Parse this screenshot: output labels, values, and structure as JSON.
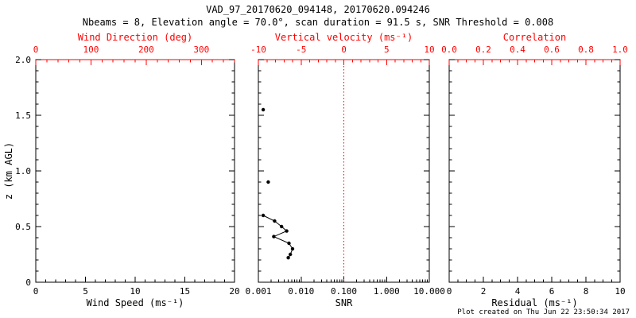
{
  "header": {
    "title": "VAD_97_20170620_094148, 20170620.094246",
    "subtitle": "Nbeams = 8, Elevation angle = 70.0°, scan duration = 91.5 s, SNR Threshold = 0.008"
  },
  "footer": {
    "created": "Plot created on Thu Jun 22 23:50:34 2017"
  },
  "colors": {
    "axis": "#000000",
    "secondary": "#ff0000",
    "data": "#000000",
    "background": "#ffffff"
  },
  "y_axis": {
    "label": "z (km AGL)",
    "min": 0,
    "max": 2,
    "tick_values": [
      0,
      0.5,
      1,
      1.5,
      2
    ],
    "tick_labels": [
      "0",
      "0.5",
      "1.0",
      "1.5",
      "2.0"
    ],
    "minor_step": 0.1
  },
  "chart_data": [
    {
      "id": "wind-speed",
      "type": "scatter",
      "xlabel": "Wind Speed (ms⁻¹)",
      "xscale": "linear",
      "xmin": 0,
      "xmax": 20,
      "tick_values": [
        0,
        5,
        10,
        15,
        20
      ],
      "tick_labels": [
        "0",
        "5",
        "10",
        "15",
        "20"
      ],
      "minor_step": 1,
      "top_axis": {
        "label": "Wind Direction (deg)",
        "min": 0,
        "max": 360,
        "tick_values": [
          0,
          100,
          200,
          300
        ],
        "tick_labels": [
          "0",
          "100",
          "200",
          "300"
        ],
        "minor_step": 20
      },
      "series": []
    },
    {
      "id": "snr",
      "type": "line-scatter",
      "xlabel": "SNR",
      "xscale": "log",
      "xmin": 0.001,
      "xmax": 10,
      "tick_values": [
        0.001,
        0.01,
        0.1,
        1,
        10
      ],
      "tick_labels": [
        "0.001",
        "0.010",
        "0.100",
        "1.000",
        "10.000"
      ],
      "top_axis": {
        "label": "Vertical velocity (ms⁻¹)",
        "min": -10,
        "max": 10,
        "tick_values": [
          -10,
          -5,
          0,
          5,
          10
        ],
        "tick_labels": [
          "-10",
          "-5",
          "0",
          "5",
          "10"
        ],
        "minor_step": 1
      },
      "ref_line": {
        "top_axis_value": 0,
        "color": "#ff0000",
        "style": "dotted"
      },
      "series": [
        {
          "name": "snr-isolated-points",
          "connect": false,
          "points": [
            {
              "x": 0.0013,
              "z": 1.55
            },
            {
              "x": 0.0017,
              "z": 0.9
            }
          ]
        },
        {
          "name": "snr-profile",
          "connect": true,
          "points": [
            {
              "x": 0.0013,
              "z": 0.6
            },
            {
              "x": 0.0024,
              "z": 0.55
            },
            {
              "x": 0.0035,
              "z": 0.5
            },
            {
              "x": 0.0046,
              "z": 0.46
            },
            {
              "x": 0.0023,
              "z": 0.41
            },
            {
              "x": 0.0052,
              "z": 0.35
            },
            {
              "x": 0.0063,
              "z": 0.3
            },
            {
              "x": 0.0056,
              "z": 0.25
            },
            {
              "x": 0.005,
              "z": 0.22
            }
          ]
        }
      ]
    },
    {
      "id": "residual",
      "type": "scatter",
      "xlabel": "Residual (ms⁻¹)",
      "xscale": "linear",
      "xmin": 0,
      "xmax": 10,
      "tick_values": [
        0,
        2,
        4,
        6,
        8,
        10
      ],
      "tick_labels": [
        "0",
        "2",
        "4",
        "6",
        "8",
        "10"
      ],
      "minor_step": 0.5,
      "top_axis": {
        "label": "Correlation",
        "min": 0,
        "max": 1,
        "tick_values": [
          0,
          0.2,
          0.4,
          0.6,
          0.8,
          1
        ],
        "tick_labels": [
          "0.0",
          "0.2",
          "0.4",
          "0.6",
          "0.8",
          "1.0"
        ],
        "minor_step": 0.05
      },
      "series": []
    }
  ]
}
